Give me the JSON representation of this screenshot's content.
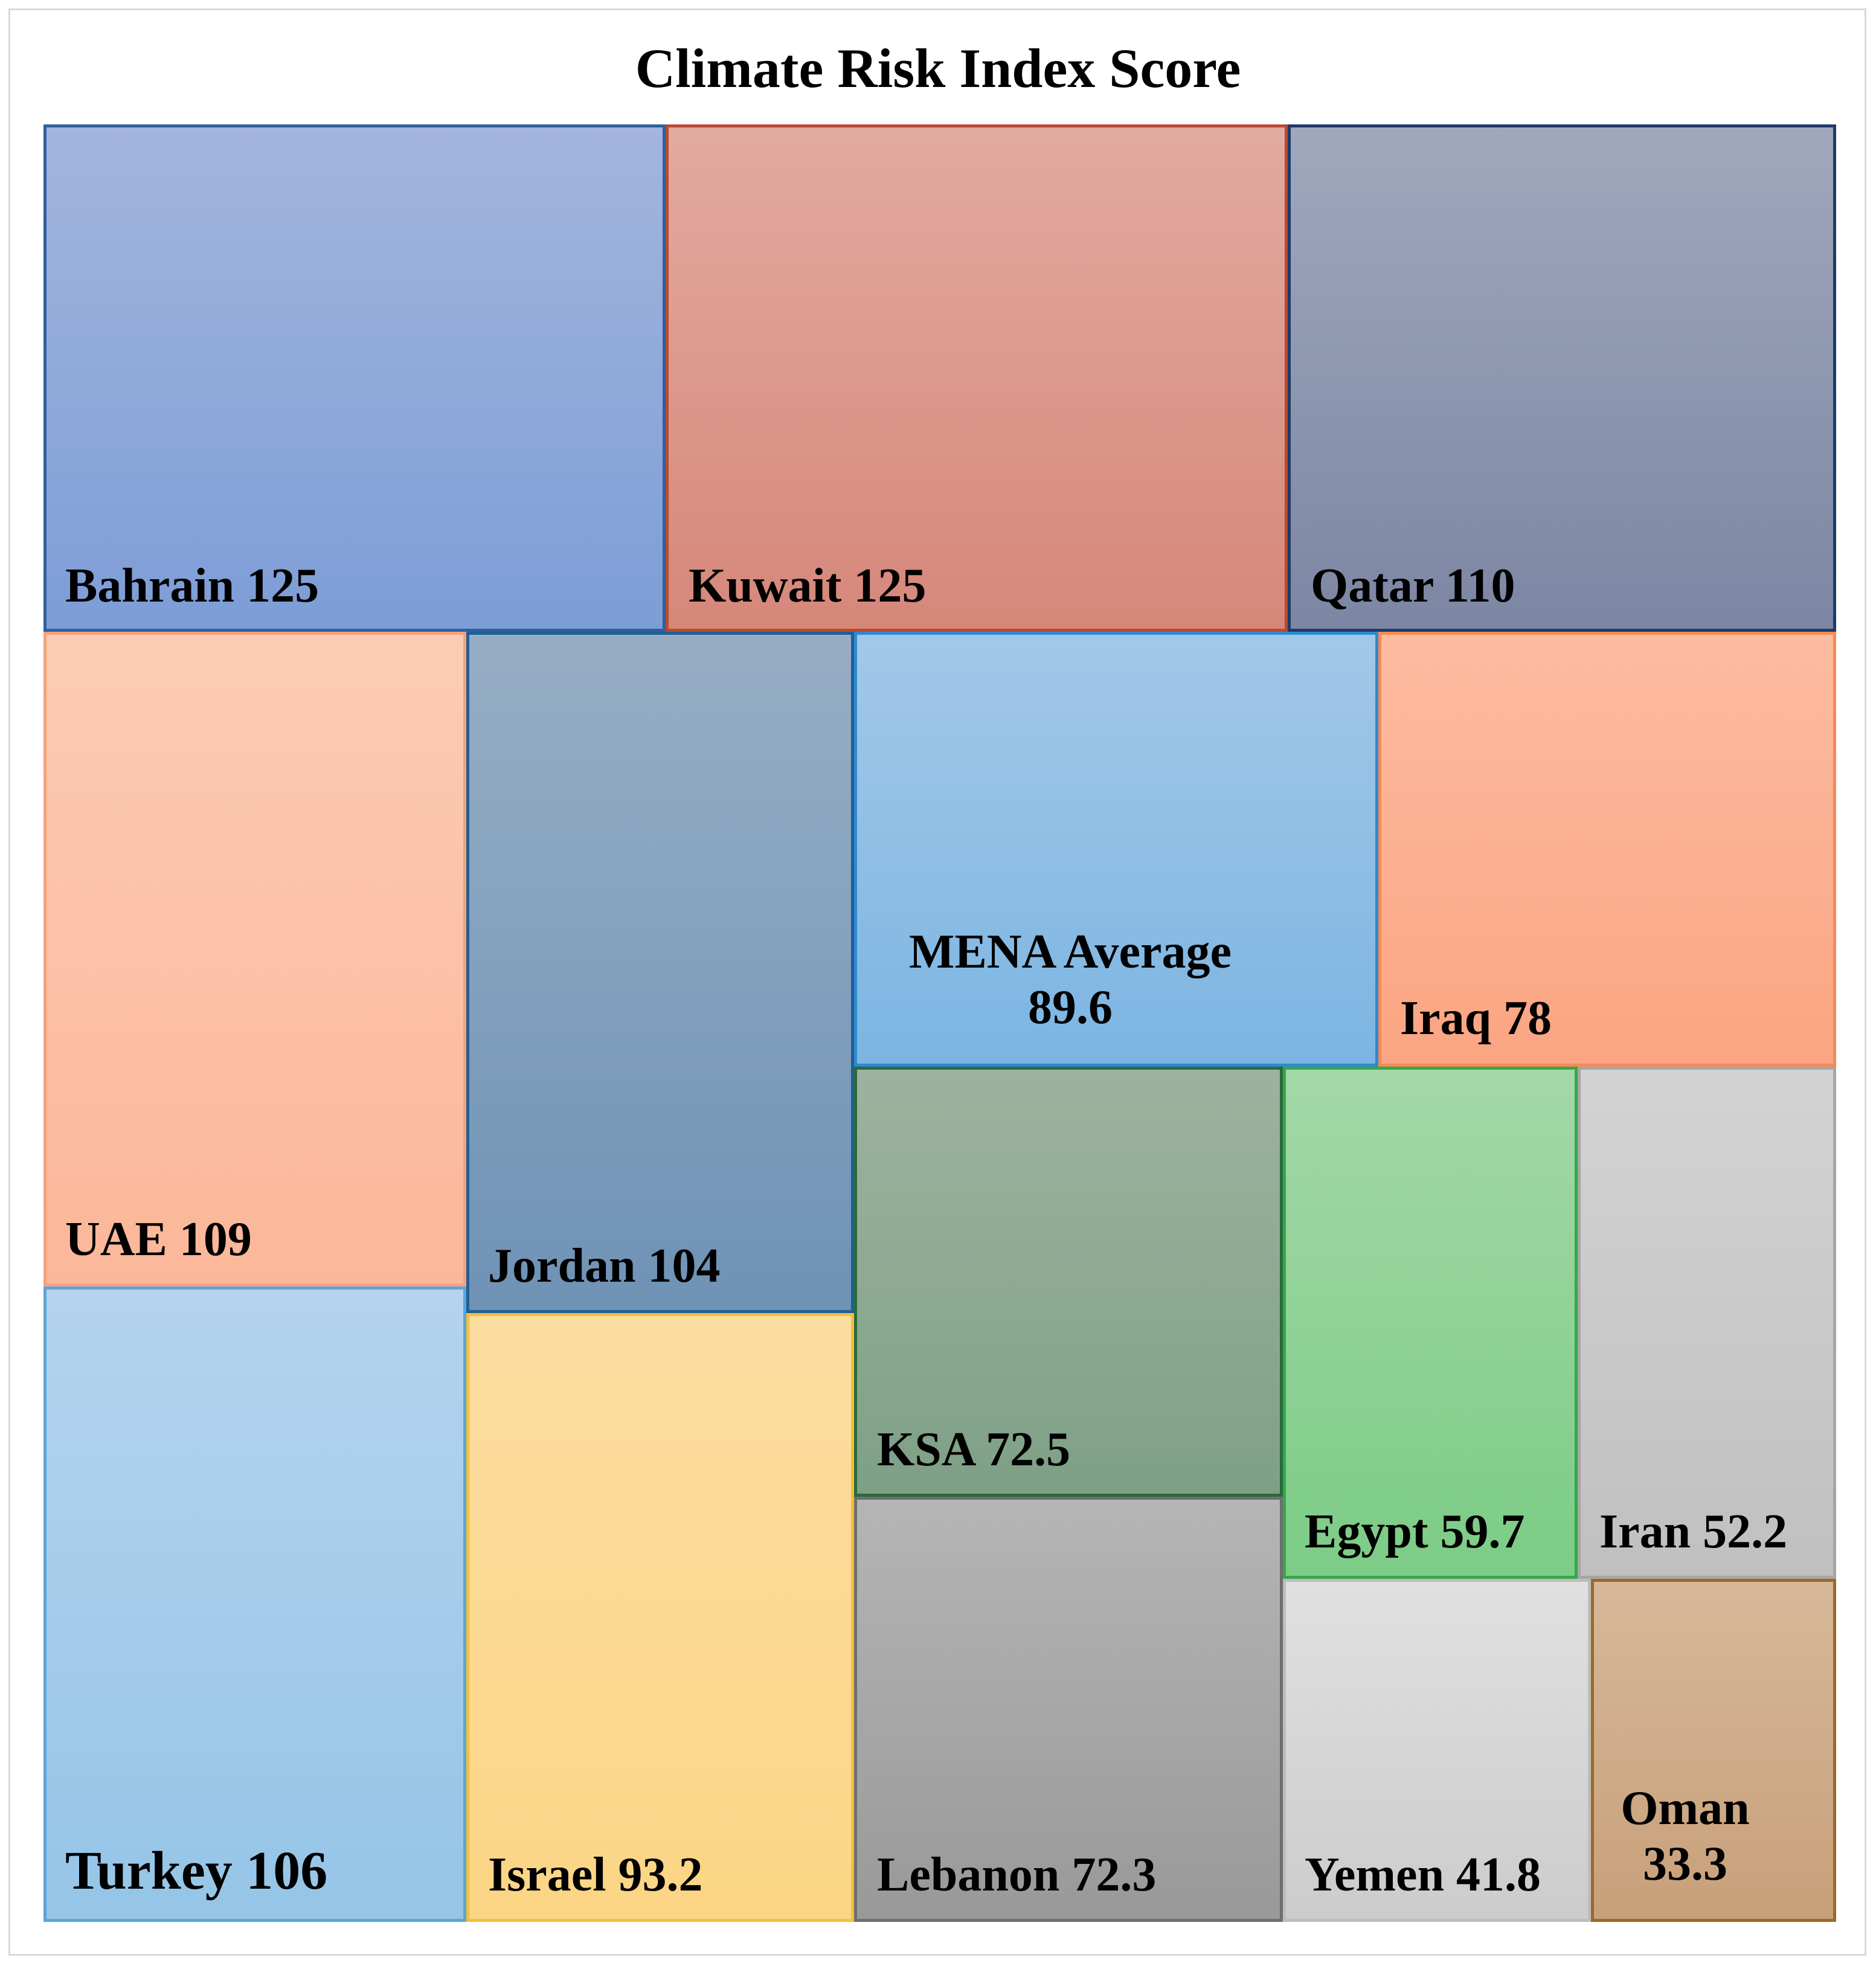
{
  "chart_data": {
    "type": "treemap",
    "title": "Climate Risk Index Score",
    "items": [
      {
        "name": "Bahrain",
        "value": "125",
        "top": "#a3b5de",
        "bottom": "#7d9dd6",
        "border": "#2f5f9e"
      },
      {
        "name": "Kuwait",
        "value": "125",
        "top": "#e2aaa0",
        "bottom": "#d6877a",
        "border": "#b84a30"
      },
      {
        "name": "Qatar",
        "value": "110",
        "top": "#a0a8bd",
        "bottom": "#7c86a3",
        "border": "#1f3a68"
      },
      {
        "name": "UAE",
        "value": "109",
        "top": "#fdcbb4",
        "bottom": "#fbb799",
        "border": "#f4a27c"
      },
      {
        "name": "Jordan",
        "value": "104",
        "top": "#96aec4",
        "bottom": "#6f92b5",
        "border": "#1f5f95"
      },
      {
        "name": "MENA Average",
        "value": "89.6",
        "top": "#a2c8e8",
        "bottom": "#7cb5e2",
        "border": "#2e8ad0"
      },
      {
        "name": "Iraq",
        "value": "78",
        "top": "#fdbba0",
        "bottom": "#fba582",
        "border": "#f58a55"
      },
      {
        "name": "Turkey",
        "value": "106",
        "top": "#b5d3ed",
        "bottom": "#95c5e7",
        "border": "#5aa6d8"
      },
      {
        "name": "Israel",
        "value": "93.2",
        "top": "#fcdda0",
        "bottom": "#fcd585",
        "border": "#f5bf3a"
      },
      {
        "name": "KSA",
        "value": "72.5",
        "top": "#9db39f",
        "bottom": "#7ea086",
        "border": "#2a6a3a"
      },
      {
        "name": "Egypt",
        "value": "59.7",
        "top": "#a3d8a8",
        "bottom": "#7ccc86",
        "border": "#34a84a"
      },
      {
        "name": "Iran",
        "value": "52.2",
        "top": "#d3d3d3",
        "bottom": "#c0c0c0",
        "border": "#a6a6a6"
      },
      {
        "name": "Lebanon",
        "value": "72.3",
        "top": "#b5b5b5",
        "bottom": "#999999",
        "border": "#6e6e6e"
      },
      {
        "name": "Yemen",
        "value": "41.8",
        "top": "#e0e0e0",
        "bottom": "#cccccc",
        "border": "#bdbdbd"
      },
      {
        "name": "Oman",
        "value": "33.3",
        "top": "#d6b898",
        "bottom": "#c8a07a",
        "border": "#9c6a25"
      }
    ]
  }
}
